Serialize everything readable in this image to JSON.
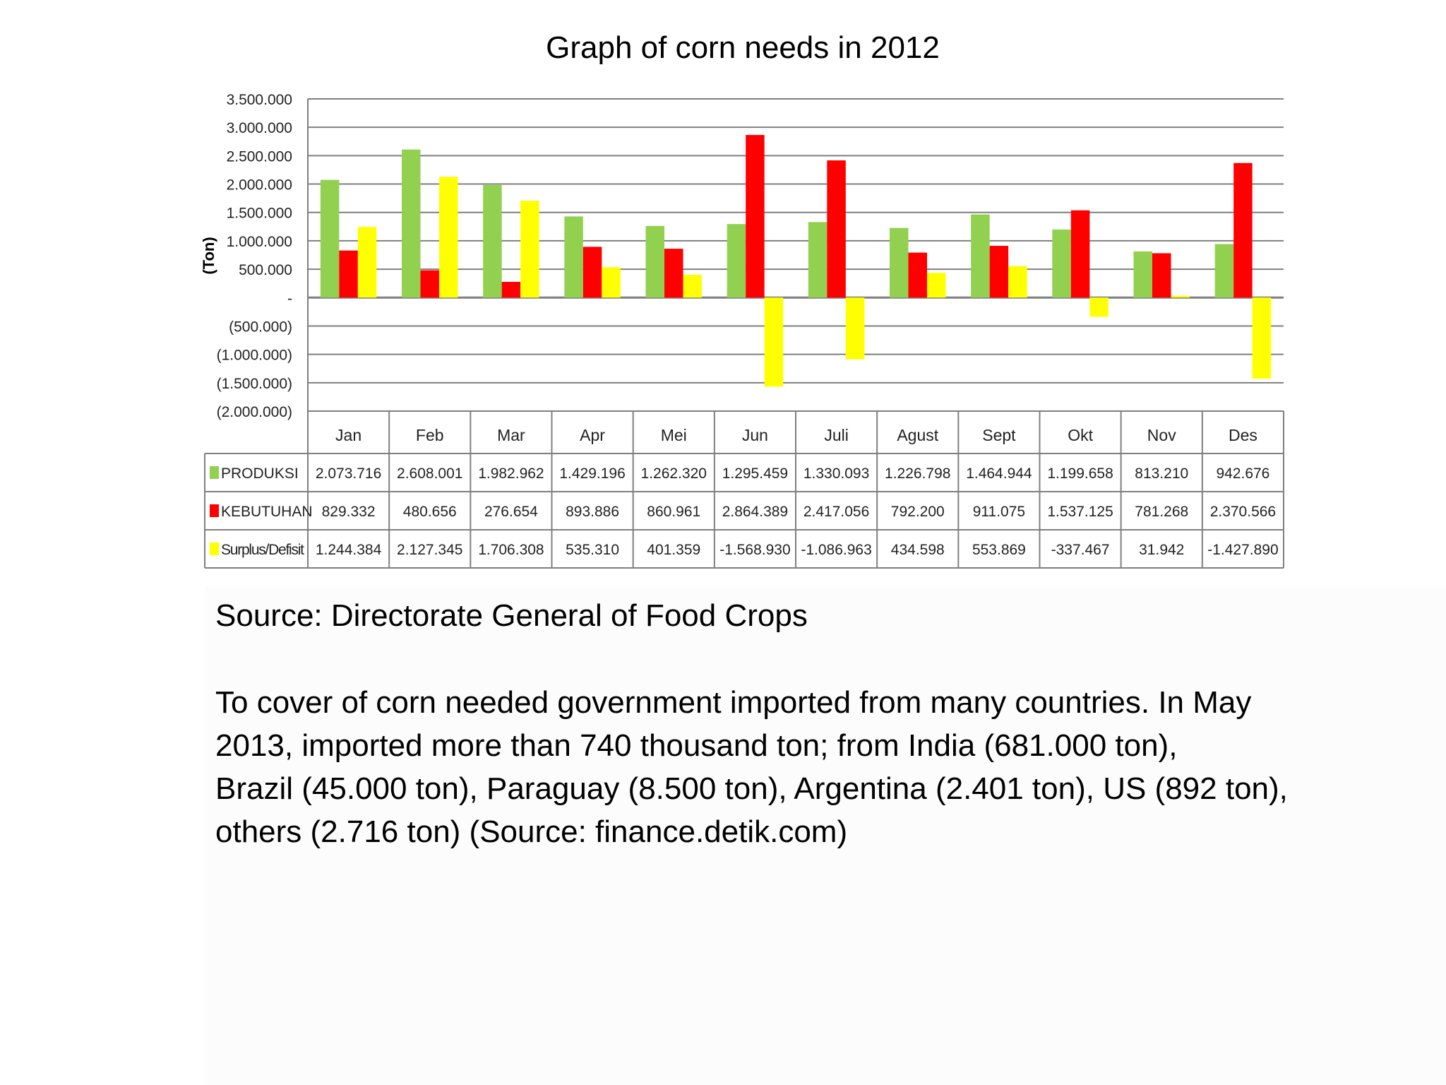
{
  "title": "Graph of corn  needs in 2012",
  "source_text": "Source: Directorate  General of Food Crops",
  "paragraph_lines": [
    "To cover of corn needed  government imported from many countries. In May",
    "2013, imported  more than 740 thousand ton; from  India (681.000 ton),",
    "Brazil (45.000 ton), Paraguay (8.500 ton), Argentina (2.401 ton), US (892 ton),",
    "others  (2.716 ton) (Source: finance.detik.com)"
  ],
  "colors": {
    "produksi": "#92d050",
    "kebutuhan": "#ff0000",
    "surplus": "#ffff00",
    "grid": "#7f7f7f",
    "table_border": "#7f7f7f"
  },
  "chart_data": {
    "type": "bar",
    "ylabel": "(Ton)",
    "ylim": [
      -2000000,
      3500000
    ],
    "y_ticks": [
      3500000,
      3000000,
      2500000,
      2000000,
      1500000,
      1000000,
      500000,
      0,
      -500000,
      -1000000,
      -1500000,
      -2000000
    ],
    "y_tick_labels": [
      "3.500.000",
      "3.000.000",
      "2.500.000",
      "2.000.000",
      "1.500.000",
      "1.000.000",
      "500.000",
      "-",
      "(500.000)",
      "(1.000.000)",
      "(1.500.000)",
      "(2.000.000)"
    ],
    "grid": true,
    "legend": "data table",
    "categories": [
      "Jan",
      "Feb",
      "Mar",
      "Apr",
      "Mei",
      "Jun",
      "Juli",
      "Agust",
      "Sept",
      "Okt",
      "Nov",
      "Des"
    ],
    "series": [
      {
        "name": "PRODUKSI",
        "color": "#92d050",
        "values": [
          2073716,
          2608001,
          1982962,
          1429196,
          1262320,
          1295459,
          1330093,
          1226798,
          1464944,
          1199658,
          813210,
          942676
        ],
        "labels": [
          "2.073.716",
          "2.608.001",
          "1.982.962",
          "1.429.196",
          "1.262.320",
          "1.295.459",
          "1.330.093",
          "1.226.798",
          "1.464.944",
          "1.199.658",
          "813.210",
          "942.676"
        ]
      },
      {
        "name": "KEBUTUHAN",
        "color": "#ff0000",
        "values": [
          829332,
          480656,
          276654,
          893886,
          860961,
          2864389,
          2417056,
          792200,
          911075,
          1537125,
          781268,
          2370566
        ],
        "labels": [
          "829.332",
          "480.656",
          "276.654",
          "893.886",
          "860.961",
          "2.864.389",
          "2.417.056",
          "792.200",
          "911.075",
          "1.537.125",
          "781.268",
          "2.370.566"
        ]
      },
      {
        "name": "Surplus/Defisit",
        "color": "#ffff00",
        "values": [
          1244384,
          2127345,
          1706308,
          535310,
          401359,
          -1568930,
          -1086963,
          434598,
          553869,
          -337467,
          31942,
          -1427890
        ],
        "labels": [
          "1.244.384",
          "2.127.345",
          "1.706.308",
          "535.310",
          "401.359",
          "-1.568.930",
          "-1.086.963",
          "434.598",
          "553.869",
          "-337.467",
          "31.942",
          "-1.427.890"
        ]
      }
    ]
  }
}
